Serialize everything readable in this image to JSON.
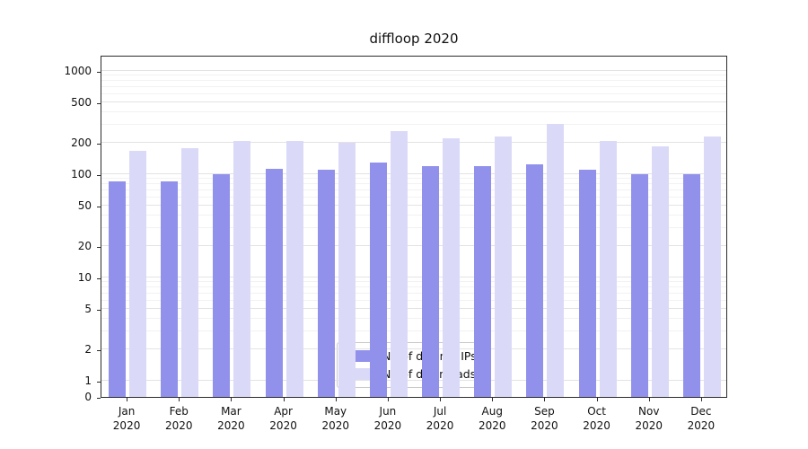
{
  "title": "diffloop 2020",
  "year_label": "2020",
  "chart_data": {
    "type": "bar",
    "title": "diffloop 2020",
    "xlabel": "",
    "ylabel": "",
    "scale": "log (with zero baseline)",
    "grid": true,
    "legend_position": "bottom-center-inside",
    "y_ticks": [
      0,
      1,
      2,
      5,
      10,
      20,
      50,
      100,
      200,
      500,
      1000
    ],
    "months": [
      "Jan",
      "Feb",
      "Mar",
      "Apr",
      "May",
      "Jun",
      "Jul",
      "Aug",
      "Sep",
      "Oct",
      "Nov",
      "Dec"
    ],
    "year": "2020",
    "series": [
      {
        "name": "Nb of distinct IPs",
        "color": "#9191ec",
        "values": [
          86,
          86,
          101,
          112,
          110,
          130,
          120,
          120,
          125,
          110,
          100,
          100
        ]
      },
      {
        "name": "Nb of downloads",
        "color": "#dadaf8",
        "values": [
          170,
          180,
          210,
          210,
          200,
          260,
          225,
          230,
          310,
          210,
          186,
          230
        ]
      }
    ]
  },
  "colors": {
    "grid_major": "#e3e3e3",
    "grid_minor": "#f2f2f2",
    "axis": "#2b2b2b",
    "background": "#ffffff"
  }
}
